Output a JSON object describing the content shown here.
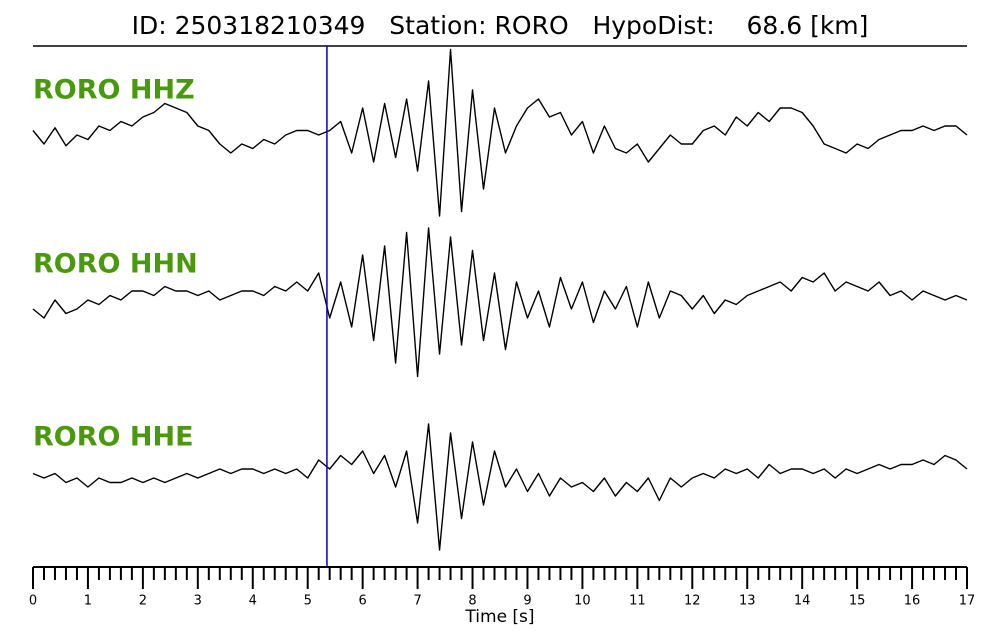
{
  "chart_data": {
    "type": "seismogram",
    "title": "ID: 250318210349   Station: RORO   HypoDist:    68.6 [km]",
    "xlabel": "Time [s]",
    "xlim": [
      0,
      17
    ],
    "xticks": [
      0,
      1,
      2,
      3,
      4,
      5,
      6,
      7,
      8,
      9,
      10,
      11,
      12,
      13,
      14,
      15,
      16,
      17
    ],
    "minor_divisions": 5,
    "ylim": [
      -1,
      1
    ],
    "label_color": "#4a990c",
    "pick_time": 5.35,
    "pick_color": "#0000cc",
    "x": [
      0,
      0.2,
      0.4,
      0.6,
      0.8,
      1,
      1.2,
      1.4,
      1.6,
      1.8,
      2,
      2.2,
      2.4,
      2.6,
      2.8,
      3,
      3.2,
      3.4,
      3.6,
      3.8,
      4,
      4.2,
      4.4,
      4.6,
      4.8,
      5,
      5.2,
      5.4,
      5.6,
      5.8,
      6,
      6.2,
      6.4,
      6.6,
      6.8,
      7,
      7.2,
      7.4,
      7.6,
      7.8,
      8,
      8.2,
      8.4,
      8.6,
      8.8,
      9,
      9.2,
      9.4,
      9.6,
      9.8,
      10,
      10.2,
      10.4,
      10.6,
      10.8,
      11,
      11.2,
      11.4,
      11.6,
      11.8,
      12,
      12.2,
      12.4,
      12.6,
      12.8,
      13,
      13.2,
      13.4,
      13.6,
      13.8,
      14,
      14.2,
      14.4,
      14.6,
      14.8,
      15,
      15.2,
      15.4,
      15.6,
      15.8,
      16,
      16.2,
      16.4,
      16.6,
      16.8,
      17
    ],
    "series": [
      {
        "name": "RORO HHZ",
        "color": "#000000",
        "values": [
          0.05,
          -0.1,
          0.08,
          -0.12,
          0.0,
          -0.05,
          0.1,
          0.05,
          0.15,
          0.1,
          0.2,
          0.25,
          0.35,
          0.3,
          0.25,
          0.1,
          0.05,
          -0.1,
          -0.2,
          -0.1,
          -0.15,
          -0.05,
          -0.1,
          0.0,
          0.05,
          0.05,
          0.0,
          0.05,
          0.15,
          -0.2,
          0.3,
          -0.3,
          0.35,
          -0.25,
          0.4,
          -0.4,
          0.6,
          -0.9,
          0.95,
          -0.85,
          0.5,
          -0.6,
          0.3,
          -0.2,
          0.1,
          0.3,
          0.4,
          0.2,
          0.25,
          0.0,
          0.15,
          -0.2,
          0.1,
          -0.15,
          -0.2,
          -0.1,
          -0.3,
          -0.15,
          0.0,
          -0.1,
          -0.1,
          0.05,
          0.1,
          0.0,
          0.2,
          0.1,
          0.25,
          0.15,
          0.3,
          0.3,
          0.25,
          0.1,
          -0.1,
          -0.15,
          -0.2,
          -0.1,
          -0.15,
          -0.05,
          0.0,
          0.05,
          0.05,
          0.1,
          0.05,
          0.1,
          0.1,
          0.0
        ]
      },
      {
        "name": "RORO HHN",
        "color": "#000000",
        "values": [
          -0.1,
          -0.2,
          0.0,
          -0.15,
          -0.1,
          0.0,
          -0.05,
          0.05,
          0.0,
          0.1,
          0.1,
          0.05,
          0.15,
          0.1,
          0.1,
          0.05,
          0.1,
          0.0,
          0.05,
          0.1,
          0.1,
          0.05,
          0.15,
          0.1,
          0.2,
          0.1,
          0.3,
          -0.2,
          0.2,
          -0.3,
          0.5,
          -0.45,
          0.6,
          -0.7,
          0.75,
          -0.85,
          0.8,
          -0.6,
          0.7,
          -0.5,
          0.55,
          -0.45,
          0.3,
          -0.55,
          0.2,
          -0.2,
          0.1,
          -0.3,
          0.25,
          -0.1,
          0.2,
          -0.25,
          0.1,
          -0.1,
          0.15,
          -0.3,
          0.2,
          -0.2,
          0.1,
          0.05,
          -0.1,
          0.05,
          -0.15,
          0.0,
          -0.05,
          0.05,
          0.1,
          0.15,
          0.2,
          0.1,
          0.25,
          0.2,
          0.3,
          0.1,
          0.2,
          0.15,
          0.1,
          0.2,
          0.05,
          0.1,
          0.0,
          0.1,
          0.05,
          0.0,
          0.05,
          0.0
        ]
      },
      {
        "name": "RORO HHE",
        "color": "#000000",
        "values": [
          0.05,
          0.0,
          0.05,
          -0.05,
          0.0,
          -0.1,
          0.0,
          -0.05,
          -0.05,
          0.0,
          -0.05,
          0.0,
          -0.05,
          0.0,
          0.05,
          0.0,
          0.05,
          0.1,
          0.05,
          0.1,
          0.1,
          0.05,
          0.1,
          0.05,
          0.1,
          0.0,
          0.2,
          0.1,
          0.25,
          0.15,
          0.3,
          0.05,
          0.25,
          -0.1,
          0.3,
          -0.5,
          0.6,
          -0.8,
          0.5,
          -0.45,
          0.4,
          -0.3,
          0.3,
          -0.1,
          0.1,
          -0.15,
          0.05,
          -0.2,
          0.0,
          -0.1,
          -0.05,
          -0.15,
          0.0,
          -0.2,
          -0.05,
          -0.15,
          0.0,
          -0.25,
          0.0,
          -0.1,
          0.0,
          0.05,
          0.0,
          0.1,
          0.05,
          0.1,
          0.0,
          0.15,
          0.05,
          0.1,
          0.1,
          0.05,
          0.1,
          0.0,
          0.1,
          0.05,
          0.1,
          0.15,
          0.1,
          0.15,
          0.15,
          0.2,
          0.15,
          0.25,
          0.2,
          0.1
        ]
      }
    ]
  }
}
